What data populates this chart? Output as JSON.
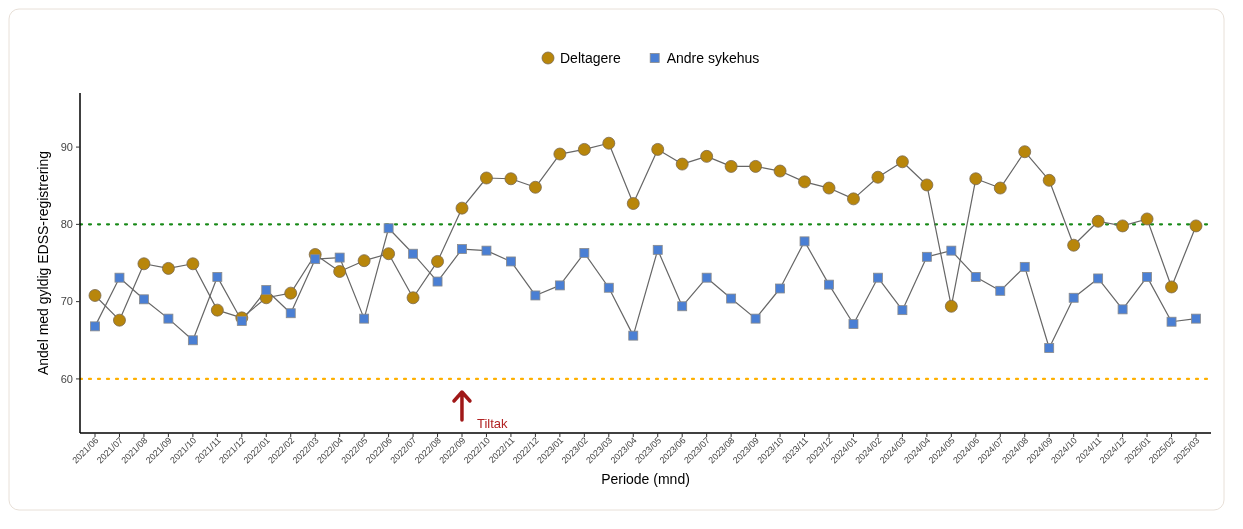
{
  "chart_data": {
    "type": "line",
    "xlabel": "Periode (mnd)",
    "ylabel": "Andel med gyldig EDSS-registrering",
    "categories": [
      "2021/06",
      "2021/07",
      "2021/08",
      "2021/09",
      "2021/10",
      "2021/11",
      "2021/12",
      "2022/01",
      "2022/02",
      "2022/03",
      "2022/04",
      "2022/05",
      "2022/06",
      "2022/07",
      "2022/08",
      "2022/09",
      "2022/10",
      "2022/11",
      "2022/12",
      "2023/01",
      "2023/02",
      "2023/03",
      "2023/04",
      "2023/05",
      "2023/06",
      "2023/07",
      "2023/08",
      "2023/09",
      "2023/10",
      "2023/11",
      "2023/12",
      "2024/01",
      "2024/02",
      "2024/03",
      "2024/04",
      "2024/05",
      "2024/06",
      "2024/07",
      "2024/08",
      "2024/09",
      "2024/10",
      "2024/11",
      "2024/12",
      "2025/01",
      "2025/02",
      "2025/03"
    ],
    "series": [
      {
        "name": "Deltagere",
        "color": "#b8860b",
        "marker": "circle",
        "values": [
          70.8,
          67.6,
          74.9,
          74.3,
          74.9,
          68.9,
          67.9,
          70.5,
          71.1,
          76.1,
          73.9,
          75.3,
          76.2,
          70.5,
          75.2,
          82.1,
          86.0,
          85.9,
          84.8,
          89.1,
          89.7,
          90.5,
          82.7,
          89.7,
          87.8,
          88.8,
          87.5,
          87.5,
          86.9,
          85.5,
          84.7,
          83.3,
          86.1,
          88.1,
          85.1,
          69.4,
          85.9,
          84.7,
          89.4,
          85.7,
          77.3,
          80.4,
          79.8,
          80.7,
          71.9,
          79.8
        ]
      },
      {
        "name": "Andre sykehus",
        "color": "#4a7fd4",
        "marker": "square",
        "values": [
          66.8,
          73.1,
          70.3,
          67.8,
          65.0,
          73.2,
          67.5,
          71.5,
          68.5,
          75.5,
          75.7,
          67.8,
          79.5,
          76.2,
          72.6,
          76.8,
          76.6,
          75.2,
          70.8,
          72.1,
          76.3,
          71.8,
          65.6,
          76.7,
          69.4,
          73.1,
          70.4,
          67.8,
          71.7,
          77.8,
          72.2,
          67.1,
          73.1,
          68.9,
          75.8,
          76.6,
          73.2,
          71.4,
          74.5,
          64.0,
          70.5,
          73.0,
          69.0,
          73.2,
          67.4,
          67.8
        ]
      }
    ],
    "ylim": [
      53,
      97
    ],
    "yticks": [
      60,
      70,
      80,
      90
    ],
    "grid": false,
    "legend": "top",
    "line_style": "solid",
    "ref_lines": [
      {
        "axis": "y",
        "value": 80,
        "color": "#1a8a1a",
        "line_style": "dotted"
      },
      {
        "axis": "y",
        "value": 60,
        "color": "#ffb000",
        "line_style": "dotted"
      }
    ],
    "annotations": [
      "Tiltak"
    ]
  }
}
